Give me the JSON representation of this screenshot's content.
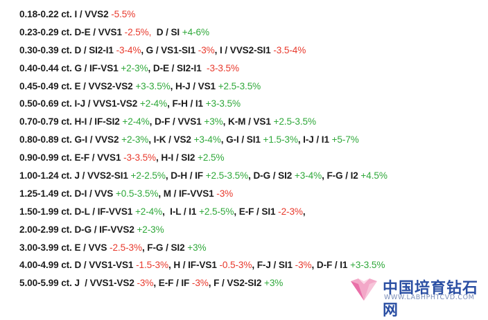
{
  "rows": [
    [
      {
        "t": "0.18-0.22 ct. I / VVS2 ",
        "c": "k"
      },
      {
        "t": "-5.5%",
        "c": "neg"
      }
    ],
    [
      {
        "t": "0.23-0.29 ct. D-E / VVS1 ",
        "c": "k"
      },
      {
        "t": "-2.5%,",
        "c": "neg"
      },
      {
        "t": "  D / SI ",
        "c": "k"
      },
      {
        "t": "+4-6%",
        "c": "pos"
      }
    ],
    [
      {
        "t": "0.30-0.39 ct. D / SI2-I1 ",
        "c": "k"
      },
      {
        "t": "-3-4%",
        "c": "neg"
      },
      {
        "t": ", G / VS1-SI1 ",
        "c": "k"
      },
      {
        "t": "-3%",
        "c": "neg"
      },
      {
        "t": ", I / VVS2-SI1 ",
        "c": "k"
      },
      {
        "t": "-3.5-4%",
        "c": "neg"
      }
    ],
    [
      {
        "t": "0.40-0.44 ct. G / IF-VS1 ",
        "c": "k"
      },
      {
        "t": "+2-3%",
        "c": "pos"
      },
      {
        "t": ", D-E / SI2-I1 ",
        "c": "k"
      },
      {
        "t": " -3-3.5%",
        "c": "neg"
      }
    ],
    [
      {
        "t": "0.45-0.49 ct. E / VVS2-VS2 ",
        "c": "k"
      },
      {
        "t": "+3-3.5%",
        "c": "pos"
      },
      {
        "t": ", H-J / VS1 ",
        "c": "k"
      },
      {
        "t": "+2.5-3.5%",
        "c": "pos"
      }
    ],
    [
      {
        "t": "0.50-0.69 ct. I-J / VVS1-VS2 ",
        "c": "k"
      },
      {
        "t": "+2-4%",
        "c": "pos"
      },
      {
        "t": ", F-H / I1 ",
        "c": "k"
      },
      {
        "t": "+3-3.5%",
        "c": "pos"
      }
    ],
    [
      {
        "t": "0.70-0.79 ct. H-I / IF-SI2 ",
        "c": "k"
      },
      {
        "t": "+2-4%",
        "c": "pos"
      },
      {
        "t": ", D-F / VVS1 ",
        "c": "k"
      },
      {
        "t": "+3%",
        "c": "pos"
      },
      {
        "t": ", K-M / VS1 ",
        "c": "k"
      },
      {
        "t": "+2.5-3.5%",
        "c": "pos"
      }
    ],
    [
      {
        "t": "0.80-0.89 ct. G-I / VVS2 ",
        "c": "k"
      },
      {
        "t": "+2-3%",
        "c": "pos"
      },
      {
        "t": ", I-K / VS2 ",
        "c": "k"
      },
      {
        "t": "+3-4%",
        "c": "pos"
      },
      {
        "t": ", G-I / SI1 ",
        "c": "k"
      },
      {
        "t": "+1.5-3%",
        "c": "pos"
      },
      {
        "t": ", I-J / I1 ",
        "c": "k"
      },
      {
        "t": "+5-7%",
        "c": "pos"
      }
    ],
    [
      {
        "t": "0.90-0.99 ct. E-F / VVS1 ",
        "c": "k"
      },
      {
        "t": "-3-3.5%",
        "c": "neg"
      },
      {
        "t": ", H-I / SI2 ",
        "c": "k"
      },
      {
        "t": "+2.5%",
        "c": "pos"
      }
    ],
    [
      {
        "t": "1.00-1.24 ct. J / VVS2-SI1 ",
        "c": "k"
      },
      {
        "t": "+2-2.5%",
        "c": "pos"
      },
      {
        "t": ", D-H / IF ",
        "c": "k"
      },
      {
        "t": "+2.5-3.5%",
        "c": "pos"
      },
      {
        "t": ", D-G / SI2 ",
        "c": "k"
      },
      {
        "t": "+3-4%",
        "c": "pos"
      },
      {
        "t": ", F-G / I2 ",
        "c": "k"
      },
      {
        "t": "+4.5%",
        "c": "pos"
      }
    ],
    [
      {
        "t": "1.25-1.49 ct. D-I / VVS ",
        "c": "k"
      },
      {
        "t": "+0.5-3.5%",
        "c": "pos"
      },
      {
        "t": ", M / IF-VVS1 ",
        "c": "k"
      },
      {
        "t": "-3%",
        "c": "neg"
      }
    ],
    [
      {
        "t": "1.50-1.99 ct. D-L / IF-VVS1 ",
        "c": "k"
      },
      {
        "t": "+2-4%",
        "c": "pos"
      },
      {
        "t": ",  I-L / I1 ",
        "c": "k"
      },
      {
        "t": "+2.5-5%",
        "c": "pos"
      },
      {
        "t": ", E-F / SI1 ",
        "c": "k"
      },
      {
        "t": "-2-3%",
        "c": "neg"
      },
      {
        "t": ",",
        "c": "k"
      }
    ],
    [
      {
        "t": "2.00-2.99 ct. D-G / IF-VVS2 ",
        "c": "k"
      },
      {
        "t": "+2-3%",
        "c": "pos"
      }
    ],
    [
      {
        "t": "3.00-3.99 ct. E / VVS ",
        "c": "k"
      },
      {
        "t": "-2.5-3%",
        "c": "neg"
      },
      {
        "t": ", F-G / SI2 ",
        "c": "k"
      },
      {
        "t": "+3%",
        "c": "pos"
      }
    ],
    [
      {
        "t": "4.00-4.99 ct. D / VVS1-VS1 ",
        "c": "k"
      },
      {
        "t": "-1.5-3%",
        "c": "neg"
      },
      {
        "t": ", H / IF-VS1 ",
        "c": "k"
      },
      {
        "t": "-0.5-3%",
        "c": "neg"
      },
      {
        "t": ", F-J / SI1 ",
        "c": "k"
      },
      {
        "t": "-3%",
        "c": "neg"
      },
      {
        "t": ", D-F / I1 ",
        "c": "k"
      },
      {
        "t": "+3-3.5%",
        "c": "pos"
      }
    ],
    [
      {
        "t": "5.00-5.99 ct. J  / VVS1-VS2 ",
        "c": "k"
      },
      {
        "t": "-3%",
        "c": "neg"
      },
      {
        "t": ", E-F / IF ",
        "c": "k"
      },
      {
        "t": "-3%",
        "c": "neg"
      },
      {
        "t": ", F / VS2-SI2 ",
        "c": "k"
      },
      {
        "t": "+3%",
        "c": "pos"
      }
    ]
  ],
  "colors": {
    "negative": "#e8392c",
    "positive": "#2fa83a",
    "text": "#1c1c1c",
    "brand": "#2b4fa3"
  },
  "watermark": {
    "icon": "diamond-heart-logo",
    "name": "中国培育钻石网",
    "url": "WWW.LABHPHTCVD.COM"
  }
}
